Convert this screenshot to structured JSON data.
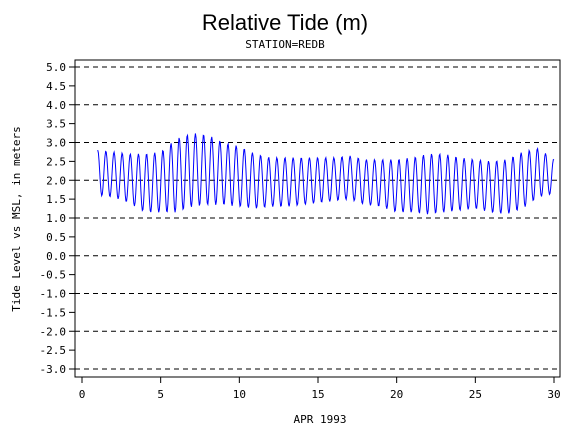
{
  "chart_data": {
    "type": "line",
    "title": "Relative Tide (m)",
    "subtitle": "STATION=REDB",
    "xlabel": "APR 1993",
    "ylabel": "Tide Level vs MSL, in meters",
    "xlim": [
      0,
      30
    ],
    "ylim": [
      -3.0,
      5.0
    ],
    "x_ticks": [
      0,
      5,
      10,
      15,
      20,
      25,
      30
    ],
    "y_ticks": [
      5.0,
      4.5,
      4.0,
      3.5,
      3.0,
      2.5,
      2.0,
      1.5,
      1.0,
      0.5,
      0.0,
      -0.5,
      -1.0,
      -1.5,
      -2.0,
      -2.5,
      -3.0
    ],
    "y_tick_labels": [
      "5.0",
      "4.5",
      "4.0",
      "3.5",
      "3.0",
      "2.5",
      "2.0",
      "1.5",
      "1.0",
      "0.5",
      "0.0",
      "-0.5",
      "-1.0",
      "-1.5",
      "-2.0",
      "-2.5",
      "-3.0"
    ],
    "dashed_gridlines_y": [
      5.0,
      4.0,
      3.0,
      2.0,
      1.0,
      0.0,
      -1.0,
      -2.0,
      -3.0
    ],
    "line_color": "#0000ff",
    "series": [
      {
        "sampling": "hourly",
        "x": [
          1.0,
          30.0
        ],
        "approx_range": [
          1.1,
          3.25
        ],
        "daily_extremes": [
          {
            "day": 1,
            "high": 2.8,
            "low": 1.6
          },
          {
            "day": 2,
            "high": 2.75,
            "low": 1.55
          },
          {
            "day": 3,
            "high": 2.7,
            "low": 1.4
          },
          {
            "day": 4,
            "high": 2.7,
            "low": 1.15
          },
          {
            "day": 5,
            "high": 2.75,
            "low": 1.15
          },
          {
            "day": 6,
            "high": 3.1,
            "low": 1.15
          },
          {
            "day": 7,
            "high": 3.25,
            "low": 1.3
          },
          {
            "day": 8,
            "high": 3.2,
            "low": 1.35
          },
          {
            "day": 9,
            "high": 3.0,
            "low": 1.35
          },
          {
            "day": 10,
            "high": 2.9,
            "low": 1.3
          },
          {
            "day": 11,
            "high": 2.7,
            "low": 1.25
          },
          {
            "day": 12,
            "high": 2.6,
            "low": 1.3
          },
          {
            "day": 13,
            "high": 2.6,
            "low": 1.3
          },
          {
            "day": 14,
            "high": 2.6,
            "low": 1.35
          },
          {
            "day": 15,
            "high": 2.6,
            "low": 1.4
          },
          {
            "day": 16,
            "high": 2.6,
            "low": 1.45
          },
          {
            "day": 17,
            "high": 2.65,
            "low": 1.5
          },
          {
            "day": 18,
            "high": 2.55,
            "low": 1.35
          },
          {
            "day": 19,
            "high": 2.55,
            "low": 1.3
          },
          {
            "day": 20,
            "high": 2.55,
            "low": 1.15
          },
          {
            "day": 21,
            "high": 2.6,
            "low": 1.15
          },
          {
            "day": 22,
            "high": 2.7,
            "low": 1.1
          },
          {
            "day": 23,
            "high": 2.7,
            "low": 1.15
          },
          {
            "day": 24,
            "high": 2.6,
            "low": 1.2
          },
          {
            "day": 25,
            "high": 2.55,
            "low": 1.25
          },
          {
            "day": 26,
            "high": 2.5,
            "low": 1.15
          },
          {
            "day": 27,
            "high": 2.55,
            "low": 1.1
          },
          {
            "day": 28,
            "high": 2.75,
            "low": 1.25
          },
          {
            "day": 29,
            "high": 2.85,
            "low": 1.55
          },
          {
            "day": 30,
            "high": 2.55,
            "low": 1.65
          }
        ]
      }
    ]
  }
}
